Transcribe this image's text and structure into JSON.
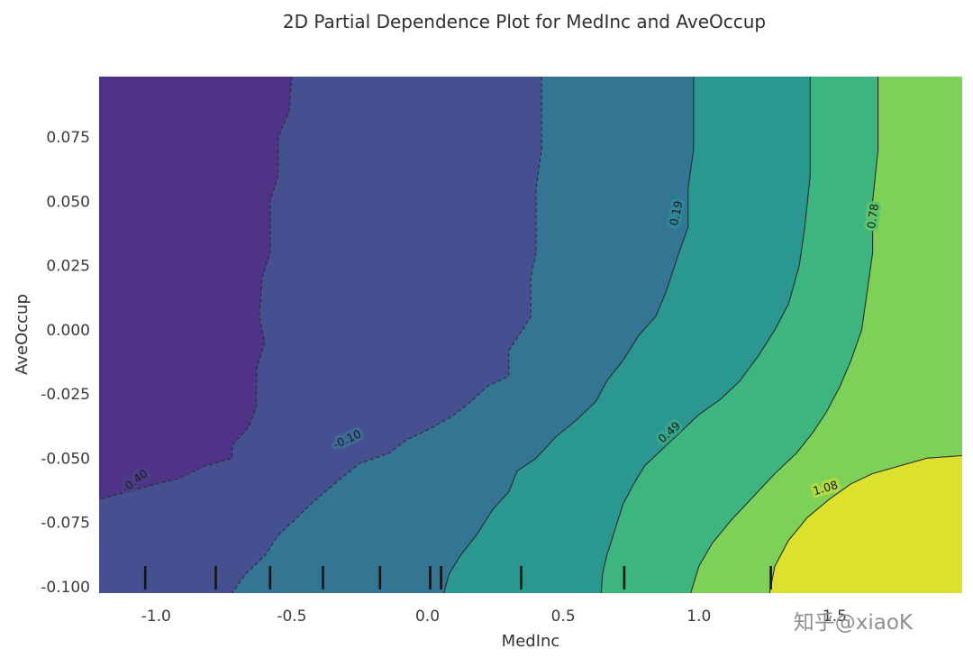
{
  "figure": {
    "watermark": "知乎@xiaoK",
    "background": "#ffffff",
    "watermark_color": "#8f8f8f"
  },
  "chart_data": {
    "type": "contour",
    "title": "2D Partial Dependence Plot for MedInc and AveOccup",
    "xlabel": "MedInc",
    "ylabel": "AveOccup",
    "colormap": "viridis",
    "grid": false,
    "legend": "none",
    "xlim": [
      -1.21,
      1.97
    ],
    "ylim": [
      -0.1025,
      0.0985
    ],
    "x_tick_values": [
      -1.0,
      -0.5,
      0.0,
      0.5,
      1.0,
      1.5
    ],
    "x_tick_labels": [
      "-1.0",
      "-0.5",
      "0.0",
      "0.5",
      "1.0",
      "1.5"
    ],
    "y_tick_values": [
      0.075,
      0.05,
      0.025,
      0.0,
      -0.025,
      -0.05,
      -0.075,
      -0.1
    ],
    "y_tick_labels": [
      "0.075",
      "0.050",
      "0.025",
      "0.000",
      "-0.025",
      "-0.050",
      "-0.075",
      "-0.100"
    ],
    "levels": [
      -0.4,
      -0.1,
      0.19,
      0.49,
      0.78,
      1.08
    ],
    "band_colors": [
      "#4e3386",
      "#44508f",
      "#347594",
      "#2a9791",
      "#3cb67e",
      "#7cd156",
      "#dce12d"
    ],
    "line_color": "#2b2b2b",
    "label_color": "#1c1c1c",
    "rug_color": "#141414",
    "rug_x": [
      -1.04,
      -0.78,
      -0.58,
      -0.385,
      -0.175,
      0.01,
      0.05,
      0.345,
      0.725,
      1.265
    ],
    "contours": [
      {
        "level": -0.4,
        "label": "-0.40",
        "dashed": true,
        "label_pos": [
          -1.07,
          -0.06
        ],
        "label_rot": -38,
        "label_bg": "#4c3d8a",
        "points": [
          [
            -0.5,
            0.0985
          ],
          [
            -0.51,
            0.085
          ],
          [
            -0.55,
            0.075
          ],
          [
            -0.55,
            0.06
          ],
          [
            -0.58,
            0.05
          ],
          [
            -0.58,
            0.03
          ],
          [
            -0.61,
            0.02
          ],
          [
            -0.62,
            0.005
          ],
          [
            -0.6,
            -0.005
          ],
          [
            -0.63,
            -0.015
          ],
          [
            -0.63,
            -0.03
          ],
          [
            -0.66,
            -0.038
          ],
          [
            -0.72,
            -0.045
          ],
          [
            -0.72,
            -0.05
          ],
          [
            -0.82,
            -0.053
          ],
          [
            -0.92,
            -0.058
          ],
          [
            -1.0,
            -0.06
          ],
          [
            -1.1,
            -0.063
          ],
          [
            -1.21,
            -0.066
          ]
        ],
        "close_corners": [
          [
            -1.21,
            -0.1025
          ],
          [
            1.97,
            -0.1025
          ],
          [
            1.97,
            0.0985
          ]
        ]
      },
      {
        "level": -0.1,
        "label": "-0.10",
        "dashed": true,
        "label_pos": [
          -0.29,
          -0.044
        ],
        "label_rot": -25,
        "label_bg": "#406a96",
        "points": [
          [
            0.42,
            0.0985
          ],
          [
            0.42,
            0.07
          ],
          [
            0.4,
            0.055
          ],
          [
            0.4,
            0.03
          ],
          [
            0.38,
            0.02
          ],
          [
            0.38,
            0.005
          ],
          [
            0.35,
            0.0
          ],
          [
            0.3,
            -0.008
          ],
          [
            0.3,
            -0.018
          ],
          [
            0.22,
            -0.022
          ],
          [
            0.16,
            -0.028
          ],
          [
            0.1,
            -0.033
          ],
          [
            0.02,
            -0.038
          ],
          [
            -0.08,
            -0.043
          ],
          [
            -0.14,
            -0.048
          ],
          [
            -0.25,
            -0.052
          ],
          [
            -0.32,
            -0.058
          ],
          [
            -0.4,
            -0.065
          ],
          [
            -0.47,
            -0.072
          ],
          [
            -0.55,
            -0.08
          ],
          [
            -0.6,
            -0.088
          ],
          [
            -0.67,
            -0.095
          ],
          [
            -0.72,
            -0.1025
          ]
        ],
        "close_corners": [
          [
            1.97,
            -0.1025
          ],
          [
            1.97,
            0.0985
          ]
        ]
      },
      {
        "level": 0.19,
        "label": "0.19",
        "dashed": false,
        "label_pos": [
          0.93,
          0.045
        ],
        "label_rot": -78,
        "label_bg": "#2f8698",
        "points": [
          [
            0.98,
            0.0985
          ],
          [
            0.98,
            0.07
          ],
          [
            0.96,
            0.055
          ],
          [
            0.96,
            0.04
          ],
          [
            0.92,
            0.028
          ],
          [
            0.88,
            0.015
          ],
          [
            0.84,
            0.005
          ],
          [
            0.78,
            -0.002
          ],
          [
            0.72,
            -0.012
          ],
          [
            0.66,
            -0.02
          ],
          [
            0.62,
            -0.028
          ],
          [
            0.55,
            -0.035
          ],
          [
            0.47,
            -0.042
          ],
          [
            0.4,
            -0.05
          ],
          [
            0.33,
            -0.055
          ],
          [
            0.3,
            -0.063
          ],
          [
            0.24,
            -0.07
          ],
          [
            0.18,
            -0.08
          ],
          [
            0.12,
            -0.088
          ],
          [
            0.08,
            -0.095
          ],
          [
            0.06,
            -0.1025
          ]
        ],
        "close_corners": [
          [
            1.97,
            -0.1025
          ],
          [
            1.97,
            0.0985
          ]
        ]
      },
      {
        "level": 0.49,
        "label": "0.49",
        "dashed": false,
        "label_pos": [
          0.9,
          -0.041
        ],
        "label_rot": -42,
        "label_bg": "#33a789",
        "points": [
          [
            1.41,
            0.0985
          ],
          [
            1.41,
            0.06
          ],
          [
            1.39,
            0.04
          ],
          [
            1.37,
            0.025
          ],
          [
            1.33,
            0.01
          ],
          [
            1.28,
            0.0
          ],
          [
            1.22,
            -0.01
          ],
          [
            1.15,
            -0.02
          ],
          [
            1.08,
            -0.027
          ],
          [
            1.0,
            -0.033
          ],
          [
            0.95,
            -0.038
          ],
          [
            0.88,
            -0.045
          ],
          [
            0.8,
            -0.053
          ],
          [
            0.76,
            -0.06
          ],
          [
            0.72,
            -0.068
          ],
          [
            0.69,
            -0.078
          ],
          [
            0.66,
            -0.088
          ],
          [
            0.645,
            -0.095
          ],
          [
            0.64,
            -0.1025
          ]
        ],
        "close_corners": [
          [
            1.97,
            -0.1025
          ],
          [
            1.97,
            0.0985
          ]
        ]
      },
      {
        "level": 0.78,
        "label": "0.78",
        "dashed": false,
        "label_pos": [
          1.655,
          0.044
        ],
        "label_rot": -82,
        "label_bg": "#5cc46a",
        "points": [
          [
            1.66,
            0.0985
          ],
          [
            1.66,
            0.07
          ],
          [
            1.64,
            0.05
          ],
          [
            1.64,
            0.03
          ],
          [
            1.62,
            0.015
          ],
          [
            1.6,
            0.0
          ],
          [
            1.56,
            -0.012
          ],
          [
            1.52,
            -0.022
          ],
          [
            1.47,
            -0.032
          ],
          [
            1.42,
            -0.04
          ],
          [
            1.36,
            -0.048
          ],
          [
            1.28,
            -0.056
          ],
          [
            1.2,
            -0.065
          ],
          [
            1.12,
            -0.074
          ],
          [
            1.05,
            -0.083
          ],
          [
            1.0,
            -0.092
          ],
          [
            0.97,
            -0.1025
          ]
        ],
        "close_corners": [
          [
            1.97,
            -0.1025
          ],
          [
            1.97,
            0.0985
          ]
        ]
      },
      {
        "level": 1.08,
        "label": "1.08",
        "dashed": false,
        "label_pos": [
          1.47,
          -0.063
        ],
        "label_rot": -16,
        "label_bg": "#b3d943",
        "points": [
          [
            1.26,
            -0.1025
          ],
          [
            1.28,
            -0.092
          ],
          [
            1.33,
            -0.082
          ],
          [
            1.4,
            -0.073
          ],
          [
            1.48,
            -0.066
          ],
          [
            1.56,
            -0.06
          ],
          [
            1.64,
            -0.056
          ],
          [
            1.74,
            -0.053
          ],
          [
            1.84,
            -0.05
          ],
          [
            1.97,
            -0.049
          ]
        ],
        "close_corners": [
          [
            1.97,
            -0.1025
          ]
        ]
      }
    ]
  }
}
